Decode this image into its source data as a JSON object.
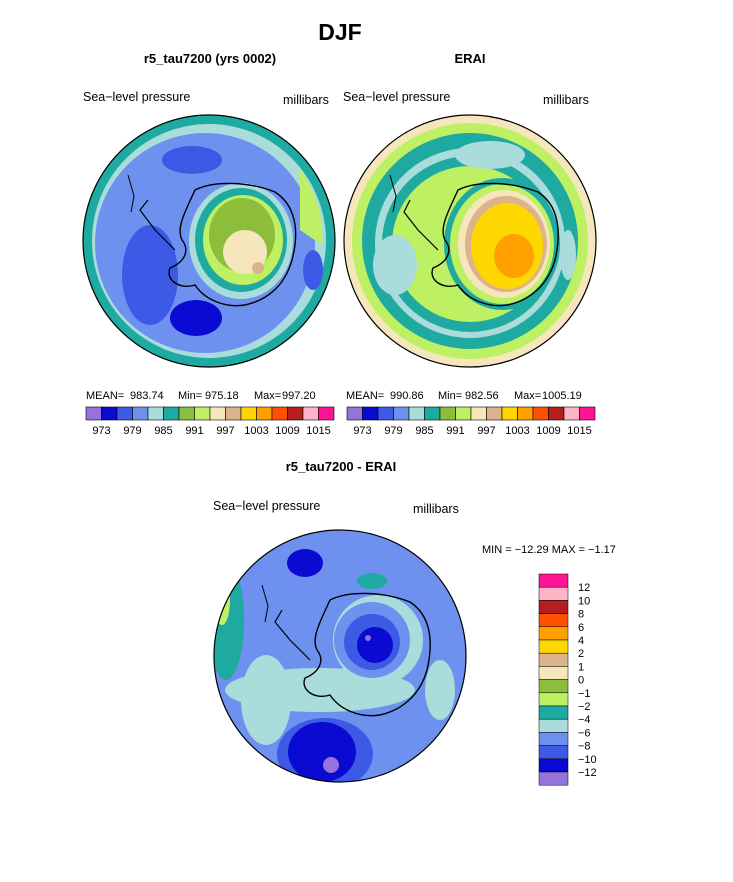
{
  "figure": {
    "title": "DJF",
    "colors": {
      "c973": "#9673dc",
      "c976": "#0a0ad2",
      "c979": "#3c5ae6",
      "c982": "#6e91ef",
      "c985": "#aadcdc",
      "c988": "#1eaaa0",
      "c991": "#8cbe3c",
      "c994": "#bef064",
      "c997": "#f5e6bc",
      "c1000": "#dcb48c",
      "c1003": "#ffd700",
      "c1006": "#ffa000",
      "c1009": "#ff5000",
      "c1012": "#b41e1e",
      "c1015": "#ffb4c8",
      "c1018": "#ff1496"
    }
  },
  "chart_data": [
    {
      "type": "heatmap",
      "projection": "polar-south",
      "title": "r5_tau7200 (yrs 0002)",
      "field_label": "Sea−level pressure",
      "units": "millibars",
      "stats": {
        "mean": "983.74",
        "min": "975.18",
        "max": "997.20"
      },
      "stats_labels": {
        "mean": "MEAN=",
        "min": "Min=",
        "max": "Max="
      },
      "colorbar": {
        "levels": [
          973,
          976,
          979,
          982,
          985,
          988,
          991,
          994,
          997,
          1000,
          1003,
          1006,
          1009,
          1012,
          1015
        ],
        "tick_labels": [
          "973",
          "979",
          "985",
          "991",
          "997",
          "1003",
          "1009",
          "1015"
        ]
      }
    },
    {
      "type": "heatmap",
      "projection": "polar-south",
      "title": "ERAI",
      "field_label": "Sea−level pressure",
      "units": "millibars",
      "stats": {
        "mean": "990.86",
        "min": "982.56",
        "max": "1005.19"
      },
      "stats_labels": {
        "mean": "MEAN=",
        "min": "Min=",
        "max": "Max="
      },
      "colorbar": {
        "levels": [
          973,
          976,
          979,
          982,
          985,
          988,
          991,
          994,
          997,
          1000,
          1003,
          1006,
          1009,
          1012,
          1015
        ],
        "tick_labels": [
          "973",
          "979",
          "985",
          "991",
          "997",
          "1003",
          "1009",
          "1015"
        ]
      }
    },
    {
      "type": "heatmap",
      "projection": "polar-south",
      "title": "r5_tau7200 - ERAI",
      "field_label": "Sea−level pressure",
      "units": "millibars",
      "minmax_text": "MIN = −12.29 MAX =  −1.17",
      "colorbar": {
        "labels": [
          "12",
          "10",
          "8",
          "6",
          "4",
          "2",
          "1",
          "0",
          "−1",
          "−2",
          "−4",
          "−6",
          "−8",
          "−10",
          "−12"
        ],
        "colors": [
          "#ff1496",
          "#ffb4c8",
          "#b41e1e",
          "#ff5000",
          "#ffa000",
          "#ffd700",
          "#dcb48c",
          "#f5e6bc",
          "#8cbe3c",
          "#bef064",
          "#1eaaa0",
          "#aadcdc",
          "#6e91ef",
          "#3c5ae6",
          "#0a0ad2",
          "#9673dc"
        ]
      }
    }
  ]
}
